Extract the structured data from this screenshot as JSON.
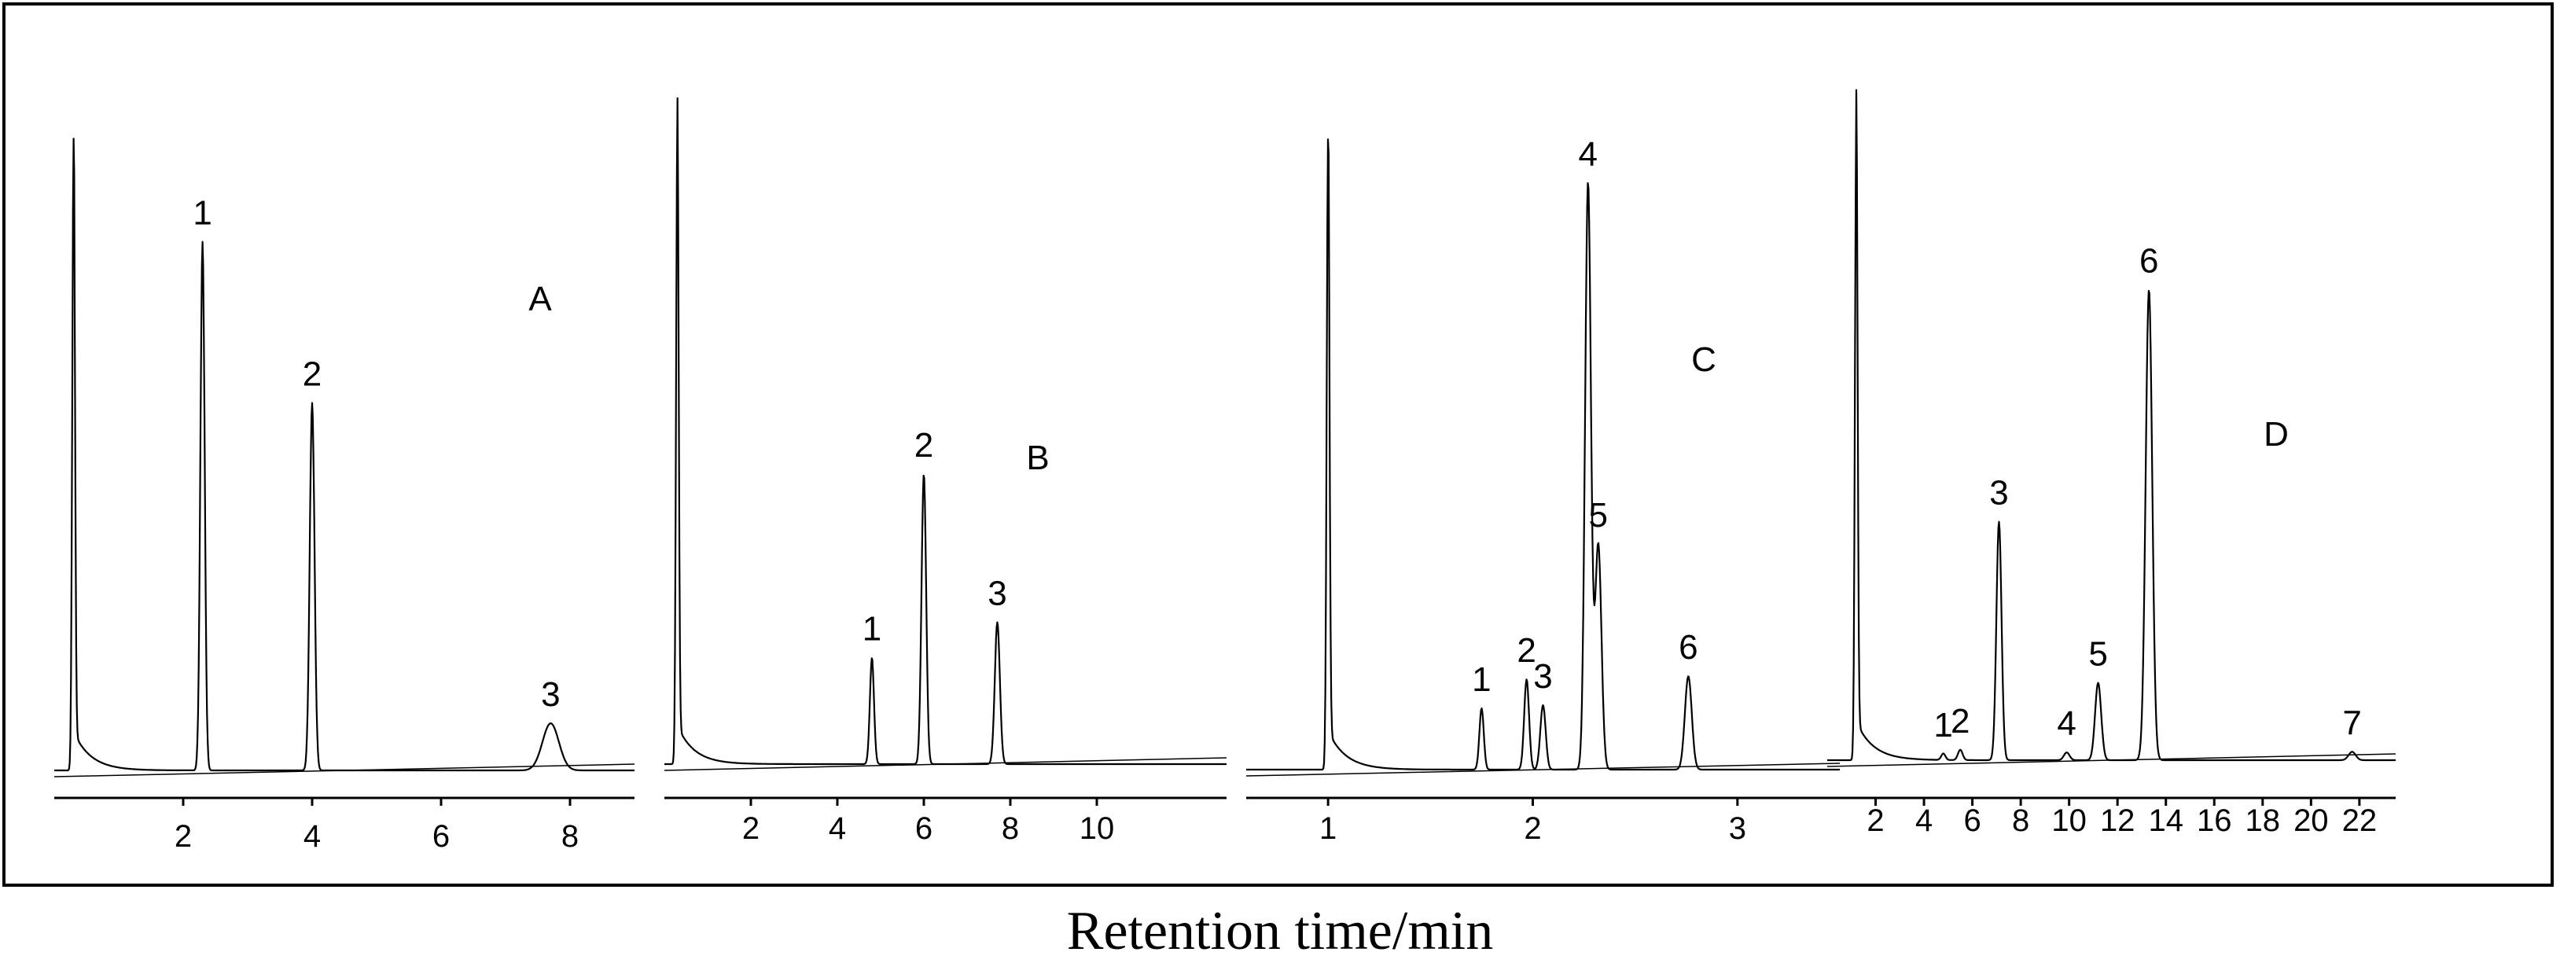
{
  "caption": "Retention time/min",
  "colors": {
    "trace": "#000000",
    "frame": "#000000"
  },
  "chart_data": [
    {
      "type": "line",
      "panel": "A",
      "xlim": [
        0,
        9
      ],
      "xticks": [
        2,
        4,
        6,
        8
      ],
      "solvent_front": 0.3,
      "peaks": [
        {
          "label": "1",
          "x": 2.3,
          "height": 0.82
        },
        {
          "label": "2",
          "x": 4.0,
          "height": 0.57
        },
        {
          "label": "3",
          "x": 7.7,
          "height": 0.073
        }
      ]
    },
    {
      "type": "line",
      "panel": "B",
      "xlim": [
        0,
        13
      ],
      "xticks": [
        2,
        4,
        6,
        8,
        10
      ],
      "solvent_front": 0.3,
      "peaks": [
        {
          "label": "1",
          "x": 4.8,
          "height": 0.165
        },
        {
          "label": "2",
          "x": 6.0,
          "height": 0.45
        },
        {
          "label": "3",
          "x": 7.7,
          "height": 0.22
        }
      ]
    },
    {
      "type": "line",
      "panel": "C",
      "xlim": [
        0.6,
        3.5
      ],
      "xticks": [
        1,
        2,
        3
      ],
      "solvent_front": 1.0,
      "peaks": [
        {
          "label": "1",
          "x": 1.75,
          "height": 0.095
        },
        {
          "label": "2",
          "x": 1.97,
          "height": 0.14
        },
        {
          "label": "3",
          "x": 2.05,
          "height": 0.1
        },
        {
          "label": "4",
          "x": 2.27,
          "height": 0.91
        },
        {
          "label": "5",
          "x": 2.32,
          "height": 0.35
        },
        {
          "label": "6",
          "x": 2.76,
          "height": 0.145
        }
      ]
    },
    {
      "type": "line",
      "panel": "D",
      "xlim": [
        0,
        23.5
      ],
      "xticks": [
        2,
        4,
        6,
        8,
        10,
        12,
        14,
        16,
        18,
        20,
        22
      ],
      "solvent_front": 1.2,
      "peaks": [
        {
          "label": "1",
          "x": 4.8,
          "height": 0.01
        },
        {
          "label": "2",
          "x": 5.5,
          "height": 0.016
        },
        {
          "label": "3",
          "x": 7.1,
          "height": 0.37
        },
        {
          "label": "4",
          "x": 9.9,
          "height": 0.012
        },
        {
          "label": "5",
          "x": 11.2,
          "height": 0.12
        },
        {
          "label": "6",
          "x": 13.3,
          "height": 0.73
        },
        {
          "label": "7",
          "x": 21.7,
          "height": 0.013
        }
      ]
    }
  ]
}
